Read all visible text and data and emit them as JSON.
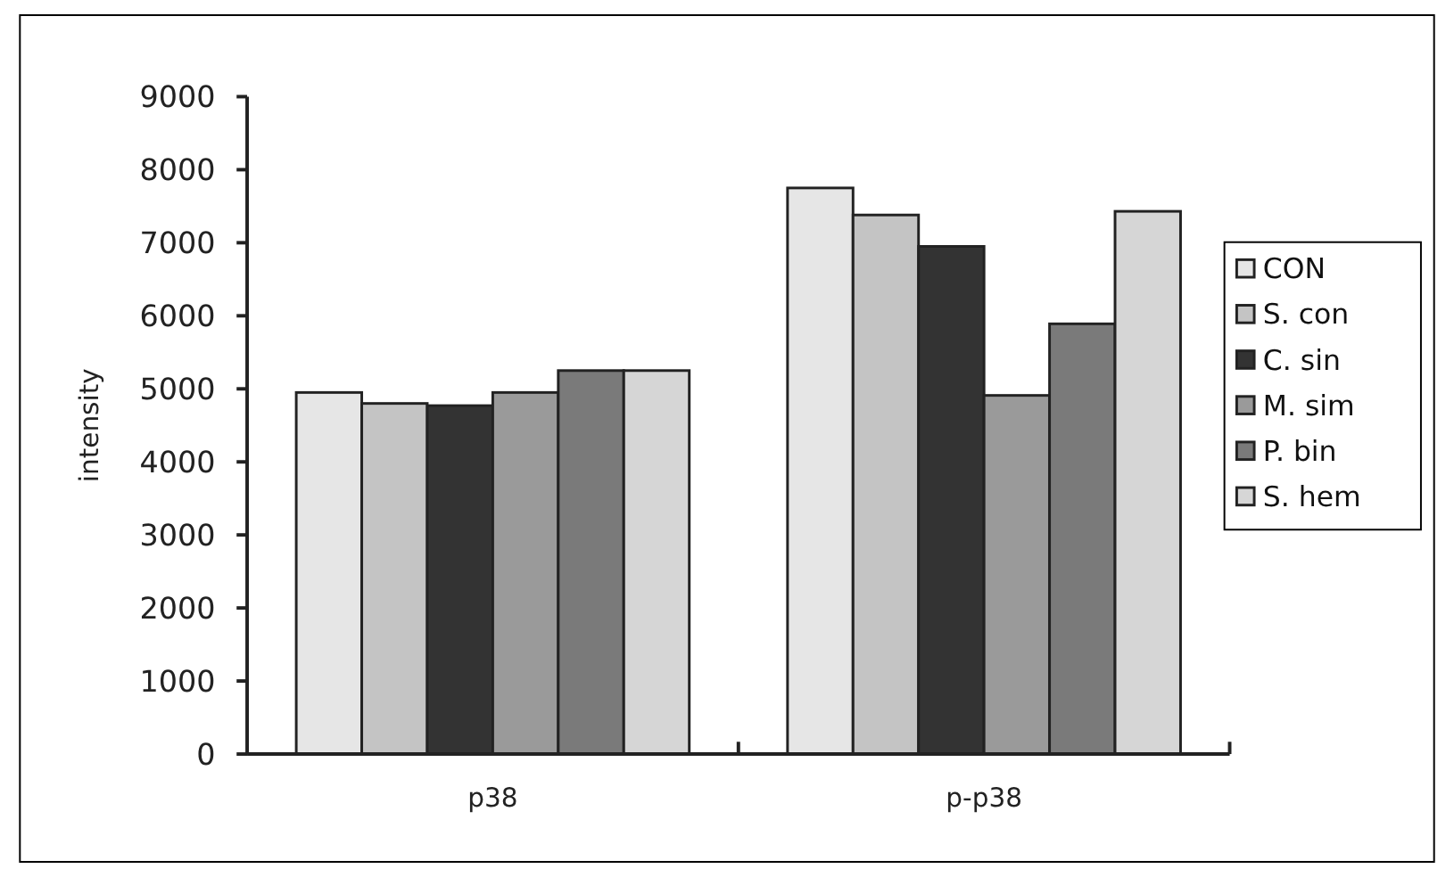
{
  "chart_data": {
    "type": "bar",
    "ylabel": "intensity",
    "categories": [
      "p38",
      "p-p38"
    ],
    "series": [
      {
        "name": "CON",
        "color": "#e6e6e6",
        "values": [
          4950,
          7750
        ]
      },
      {
        "name": "S. con",
        "color": "#c4c4c4",
        "values": [
          4800,
          7380
        ]
      },
      {
        "name": "C. sin",
        "color": "#333333",
        "values": [
          4770,
          6950
        ]
      },
      {
        "name": "M. sim",
        "color": "#9a9a9a",
        "values": [
          4950,
          4910
        ]
      },
      {
        "name": "P. bin",
        "color": "#7a7a7a",
        "values": [
          5250,
          5890
        ]
      },
      {
        "name": "S. hem",
        "color": "#d6d6d6",
        "values": [
          5250,
          7430
        ]
      }
    ],
    "ylim": [
      0,
      9000
    ],
    "yticks": [
      0,
      1000,
      2000,
      3000,
      4000,
      5000,
      6000,
      7000,
      8000,
      9000
    ],
    "grid": false,
    "legend": "right"
  }
}
